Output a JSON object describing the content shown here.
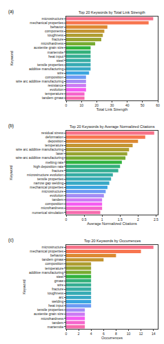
{
  "chart_data": [
    {
      "type": "bar",
      "orientation": "horizontal",
      "title": "Top 20 Keywords by Total Link Strength",
      "x_label": "Total Link Strength",
      "y_label": "Keyword",
      "annotations": [
        {
          "text": "(a)"
        }
      ],
      "categories": [
        "microstructure",
        "mechanical properties",
        "behavior",
        "components",
        "toughness",
        "fracture",
        "microhardness",
        "austenite grain size",
        "martensite",
        "heat input",
        "steel",
        "tensile properties",
        "additive manufacturing",
        "wire",
        "composition",
        "wire arc additive manufacturing",
        "resistance",
        "evolution",
        "temperature",
        "tandem gmaw"
      ],
      "values": [
        57,
        54,
        27,
        25,
        24,
        23,
        19,
        16,
        16,
        16,
        16,
        16,
        16,
        15,
        13,
        13,
        13,
        13,
        12,
        12
      ],
      "colors": [
        "#f77189",
        "#f7754f",
        "#dc8932",
        "#c39532",
        "#ae9d31",
        "#97a431",
        "#77ab31",
        "#31b33e",
        "#33b07a",
        "#35ae93",
        "#36ada4",
        "#37abb4",
        "#38a9c5",
        "#3aa5df",
        "#6e9bf4",
        "#a48cf4",
        "#cc7af4",
        "#f45cf2",
        "#f565cc",
        "#f66bad"
      ],
      "xlim": [
        0,
        60
      ],
      "xticks": [
        0,
        10,
        20,
        30,
        40,
        50,
        60
      ],
      "grid": false
    },
    {
      "type": "bar",
      "orientation": "horizontal",
      "title": "Top 20 Keywords by Average Normalized Citations",
      "x_label": "Average Normalized Citations",
      "y_label": "Keyword",
      "annotations": [
        {
          "text": "(b)"
        }
      ],
      "categories": [
        "residual stress",
        "deformation",
        "deposition",
        "temperature",
        "wire arc additive manufacturing",
        "laser",
        "wire-arc additive manufacturing",
        "melting rate",
        "high deposition rate",
        "fracture",
        "microstructure evolution",
        "tensile properties",
        "narrow gap welding",
        "mechanical properties",
        "microstructure",
        "evolution",
        "tandem",
        "composition",
        "microhardness",
        "numerical simulation"
      ],
      "values": [
        2.45,
        2.2,
        2.0,
        1.85,
        1.75,
        1.7,
        1.65,
        1.55,
        1.5,
        1.45,
        1.3,
        1.25,
        1.2,
        1.15,
        1.1,
        1.05,
        1.0,
        1.0,
        1.0,
        0.95
      ],
      "colors": [
        "#f77189",
        "#f7754f",
        "#dc8932",
        "#c39532",
        "#ae9d31",
        "#97a431",
        "#77ab31",
        "#31b33e",
        "#33b07a",
        "#35ae93",
        "#36ada4",
        "#37abb4",
        "#38a9c5",
        "#3aa5df",
        "#6e9bf4",
        "#a48cf4",
        "#cc7af4",
        "#f45cf2",
        "#f565cc",
        "#f66bad"
      ],
      "xlim": [
        0,
        2.55
      ],
      "xticks": [
        0,
        0.5,
        1,
        1.5,
        2,
        2.5
      ],
      "grid": false
    },
    {
      "type": "bar",
      "orientation": "horizontal",
      "title": "Top 20 Keywords by Occurrences",
      "x_label": "Occurrences",
      "y_label": "Keyword",
      "annotations": [
        {
          "text": "(c)"
        }
      ],
      "categories": [
        "microstructure",
        "mechanical properties",
        "behavior",
        "tandem gmaw",
        "composition",
        "temperature",
        "additive manufacturing",
        "steel",
        "gmaw",
        "wire",
        "fracture",
        "toughness",
        "arc",
        "welding",
        "heat input",
        "tensile properties",
        "austenite grain size",
        "microhardness",
        "tandem",
        "martensite"
      ],
      "values": [
        14,
        12,
        8,
        6,
        4,
        4,
        4,
        4,
        4,
        4,
        4,
        4,
        4,
        4,
        4,
        3,
        3,
        3,
        3,
        3
      ],
      "colors": [
        "#f77189",
        "#f7754f",
        "#dc8932",
        "#c39532",
        "#ae9d31",
        "#97a431",
        "#77ab31",
        "#31b33e",
        "#33b07a",
        "#35ae93",
        "#36ada4",
        "#37abb4",
        "#38a9c5",
        "#3aa5df",
        "#6e9bf4",
        "#a48cf4",
        "#cc7af4",
        "#f45cf2",
        "#f565cc",
        "#f66bad"
      ],
      "xlim": [
        0,
        14.7
      ],
      "xticks": [
        0,
        2,
        4,
        6,
        8,
        10,
        12,
        14
      ],
      "grid": false
    }
  ]
}
